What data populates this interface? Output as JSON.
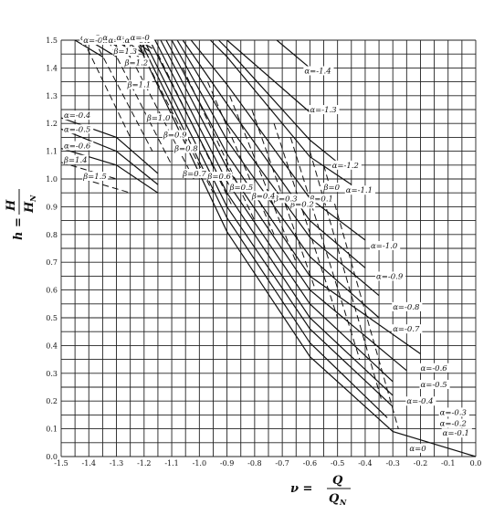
{
  "chart_data": {
    "type": "line",
    "xlabel": "ν = Q / Q_N",
    "ylabel": "h = H / H_N",
    "x_label_parts": {
      "symbol": "ν =",
      "num": "Q",
      "den": "Q",
      "den_sub": "N"
    },
    "y_label_parts": {
      "symbol": "h =",
      "num": "H",
      "den": "H",
      "den_sub": "N"
    },
    "xlim": [
      -1.5,
      0.0
    ],
    "ylim": [
      0.0,
      1.5
    ],
    "x_ticks": [
      "-1.5",
      "-1.4",
      "-1.3",
      "-1.2",
      "-1.1",
      "-1.0",
      "-0.9",
      "-0.8",
      "-0.7",
      "-0.6",
      "-0.5",
      "-0.4",
      "-0.3",
      "-0.2",
      "-0.1",
      "0.0"
    ],
    "y_ticks": [
      "0.0",
      "0.1",
      "0.2",
      "0.3",
      "0.4",
      "0.5",
      "0.6",
      "0.7",
      "0.8",
      "0.9",
      "1.0",
      "1.1",
      "1.2",
      "1.3",
      "1.4",
      "1.5"
    ],
    "grid": true,
    "alpha_curves": [
      {
        "name": "α=0",
        "label_at": [
          -0.24,
          0.02
        ],
        "points": [
          [
            0.0,
            0.0
          ],
          [
            -0.3,
            0.09
          ],
          [
            -0.6,
            0.36
          ],
          [
            -0.9,
            0.81
          ],
          [
            -1.2,
            1.44
          ],
          [
            -1.22,
            1.5
          ]
        ]
      },
      {
        "name": "α=-0.1",
        "label_at": [
          -0.12,
          0.075
        ],
        "points": [
          [
            -0.32,
            0.14
          ],
          [
            -0.6,
            0.41
          ],
          [
            -0.9,
            0.86
          ],
          [
            -1.2,
            1.47
          ],
          [
            -1.21,
            1.5
          ]
        ]
      },
      {
        "name": "α=-0.2",
        "label_at": [
          -0.13,
          0.11
        ],
        "points": [
          [
            -0.3,
            0.18
          ],
          [
            -0.6,
            0.46
          ],
          [
            -0.9,
            0.9
          ],
          [
            -1.2,
            1.5
          ]
        ]
      },
      {
        "name": "α=-0.3",
        "label_at": [
          -0.13,
          0.15
        ],
        "points": [
          [
            -0.3,
            0.22
          ],
          [
            -0.6,
            0.5
          ],
          [
            -0.9,
            0.95
          ],
          [
            -1.18,
            1.5
          ]
        ]
      },
      {
        "name": "α=-0.4",
        "label_at": [
          -0.25,
          0.19
        ],
        "points": [
          [
            -0.3,
            0.27
          ],
          [
            -0.6,
            0.55
          ],
          [
            -0.9,
            0.99
          ],
          [
            -1.16,
            1.5
          ]
        ]
      },
      {
        "name": "α=-0.5",
        "label_at": [
          -0.2,
          0.25
        ],
        "points": [
          [
            -0.25,
            0.31
          ],
          [
            -0.6,
            0.6
          ],
          [
            -0.9,
            1.04
          ],
          [
            -1.14,
            1.5
          ]
        ]
      },
      {
        "name": "α=-0.6",
        "label_at": [
          -0.2,
          0.31
        ],
        "points": [
          [
            -0.2,
            0.37
          ],
          [
            -0.6,
            0.65
          ],
          [
            -0.9,
            1.09
          ],
          [
            -1.12,
            1.5
          ]
        ]
      },
      {
        "name": "α=-0.7",
        "label_at": [
          -0.3,
          0.45
        ],
        "points": [
          [
            -0.35,
            0.5
          ],
          [
            -0.6,
            0.72
          ],
          [
            -0.9,
            1.14
          ],
          [
            -1.1,
            1.5
          ]
        ]
      },
      {
        "name": "α=-0.8",
        "label_at": [
          -0.3,
          0.53
        ],
        "points": [
          [
            -0.35,
            0.58
          ],
          [
            -0.6,
            0.79
          ],
          [
            -0.9,
            1.2
          ],
          [
            -1.08,
            1.5
          ]
        ]
      },
      {
        "name": "α=-0.9",
        "label_at": [
          -0.36,
          0.64
        ],
        "points": [
          [
            -0.4,
            0.68
          ],
          [
            -0.6,
            0.85
          ],
          [
            -0.9,
            1.27
          ],
          [
            -1.06,
            1.5
          ]
        ]
      },
      {
        "name": "α=-1.0",
        "label_at": [
          -0.38,
          0.75
        ],
        "points": [
          [
            -0.4,
            0.78
          ],
          [
            -0.6,
            0.93
          ],
          [
            -0.9,
            1.34
          ],
          [
            -1.03,
            1.5
          ]
        ]
      },
      {
        "name": "α=-1.1",
        "label_at": [
          -0.47,
          0.95
        ],
        "points": [
          [
            -0.45,
            0.98
          ],
          [
            -0.6,
            1.08
          ],
          [
            -0.9,
            1.44
          ],
          [
            -0.96,
            1.5
          ]
        ]
      },
      {
        "name": "α=-1.2",
        "label_at": [
          -0.52,
          1.04
        ],
        "points": [
          [
            -0.5,
            1.06
          ],
          [
            -0.6,
            1.14
          ],
          [
            -0.9,
            1.47
          ],
          [
            -0.93,
            1.5
          ]
        ]
      },
      {
        "name": "α=-1.3",
        "label_at": [
          -0.6,
          1.24
        ],
        "points": [
          [
            -0.6,
            1.24
          ],
          [
            -0.9,
            1.5
          ]
        ]
      },
      {
        "name": "α=-1.4",
        "label_at": [
          -0.62,
          1.38
        ],
        "points": [
          [
            -0.6,
            1.4
          ],
          [
            -0.72,
            1.5
          ]
        ]
      },
      {
        "name": "α=-0.4",
        "label_at": [
          -1.49,
          1.22
        ],
        "points": [
          [
            -1.5,
            1.22
          ],
          [
            -1.3,
            1.15
          ],
          [
            -1.15,
            1.02
          ]
        ]
      },
      {
        "name": "α=-0.5",
        "label_at": [
          -1.49,
          1.17
        ],
        "points": [
          [
            -1.5,
            1.18
          ],
          [
            -1.3,
            1.1
          ],
          [
            -1.15,
            0.98
          ]
        ]
      },
      {
        "name": "α=-0.6",
        "label_at": [
          -1.49,
          1.11
        ],
        "points": [
          [
            -1.5,
            1.11
          ],
          [
            -1.3,
            1.05
          ],
          [
            -1.15,
            0.95
          ]
        ]
      },
      {
        "name": "α=-0.7",
        "label_at": [
          -1.43,
          1.5
        ],
        "points": [
          [
            -1.45,
            1.5
          ],
          [
            -1.35,
            1.44
          ]
        ]
      },
      {
        "name": "α=-0.8",
        "label_at": [
          -1.42,
          1.49
        ],
        "points": [
          [
            -1.4,
            1.5
          ],
          [
            -1.3,
            1.44
          ]
        ]
      },
      {
        "name": "α=-0.9",
        "label_at": [
          -1.35,
          1.5
        ],
        "points": [
          [
            -1.33,
            1.5
          ],
          [
            -1.25,
            1.44
          ]
        ]
      },
      {
        "name": "α=-0.3",
        "label_at": [
          -1.33,
          1.49
        ],
        "points": [
          [
            -1.3,
            1.5
          ],
          [
            -1.22,
            1.44
          ]
        ]
      },
      {
        "name": "α=-0.2",
        "label_at": [
          -1.3,
          1.5
        ],
        "points": [
          [
            -1.27,
            1.5
          ],
          [
            -1.2,
            1.45
          ]
        ]
      },
      {
        "name": "α=-0.1",
        "label_at": [
          -1.27,
          1.49
        ],
        "points": [
          [
            -1.24,
            1.5
          ],
          [
            -1.18,
            1.46
          ]
        ]
      },
      {
        "name": "α=-0",
        "label_at": [
          -1.25,
          1.5
        ],
        "points": [
          [
            -1.22,
            1.5
          ],
          [
            -1.17,
            1.47
          ]
        ]
      }
    ],
    "beta_curves": [
      {
        "name": "β=0",
        "label_at": [
          -0.55,
          0.96
        ],
        "points": [
          [
            -0.55,
            1.05
          ],
          [
            -0.28,
            0.1
          ]
        ]
      },
      {
        "name": "β=0.1",
        "label_at": [
          -0.6,
          0.92
        ],
        "points": [
          [
            -0.6,
            1.1
          ],
          [
            -0.34,
            0.2
          ]
        ]
      },
      {
        "name": "β=0.2",
        "label_at": [
          -0.67,
          0.9
        ],
        "points": [
          [
            -0.67,
            1.15
          ],
          [
            -0.42,
            0.35
          ]
        ]
      },
      {
        "name": "β=0.3",
        "label_at": [
          -0.73,
          0.92
        ],
        "points": [
          [
            -0.73,
            1.2
          ],
          [
            -0.5,
            0.5
          ]
        ]
      },
      {
        "name": "β=0.4",
        "label_at": [
          -0.81,
          0.93
        ],
        "points": [
          [
            -0.81,
            1.25
          ],
          [
            -0.58,
            0.6
          ]
        ]
      },
      {
        "name": "β=0.5",
        "label_at": [
          -0.89,
          0.96
        ],
        "points": [
          [
            -0.89,
            1.3
          ],
          [
            -0.65,
            0.7
          ]
        ]
      },
      {
        "name": "β=0.6",
        "label_at": [
          -0.97,
          1.0
        ],
        "points": [
          [
            -0.97,
            1.35
          ],
          [
            -0.73,
            0.8
          ]
        ]
      },
      {
        "name": "β=0.7",
        "label_at": [
          -1.06,
          1.01
        ],
        "points": [
          [
            -1.06,
            1.4
          ],
          [
            -0.8,
            0.85
          ]
        ]
      },
      {
        "name": "β=0.8",
        "label_at": [
          -1.09,
          1.1
        ],
        "points": [
          [
            -1.15,
            1.45
          ],
          [
            -0.88,
            0.9
          ]
        ]
      },
      {
        "name": "β=0.9",
        "label_at": [
          -1.13,
          1.15
        ],
        "points": [
          [
            -1.22,
            1.48
          ],
          [
            -0.95,
            0.95
          ]
        ]
      },
      {
        "name": "β=1.0",
        "label_at": [
          -1.19,
          1.21
        ],
        "points": [
          [
            -1.28,
            1.5
          ],
          [
            -1.02,
            1.0
          ]
        ]
      },
      {
        "name": "β=1.1",
        "label_at": [
          -1.26,
          1.33
        ],
        "points": [
          [
            -1.33,
            1.5
          ],
          [
            -1.1,
            1.05
          ]
        ]
      },
      {
        "name": "β=1.2",
        "label_at": [
          -1.27,
          1.41
        ],
        "points": [
          [
            -1.38,
            1.5
          ],
          [
            -1.17,
            1.1
          ]
        ]
      },
      {
        "name": "β=1.3",
        "label_at": [
          -1.31,
          1.45
        ],
        "points": [
          [
            -1.42,
            1.5
          ],
          [
            -1.25,
            1.15
          ]
        ]
      },
      {
        "name": "β=1.4",
        "label_at": [
          -1.49,
          1.06
        ],
        "points": [
          [
            -1.5,
            1.06
          ],
          [
            -1.3,
            1.0
          ]
        ]
      },
      {
        "name": "β=1.5",
        "label_at": [
          -1.42,
          1.0
        ],
        "points": [
          [
            -1.42,
            1.0
          ],
          [
            -1.25,
            0.95
          ]
        ]
      }
    ]
  }
}
